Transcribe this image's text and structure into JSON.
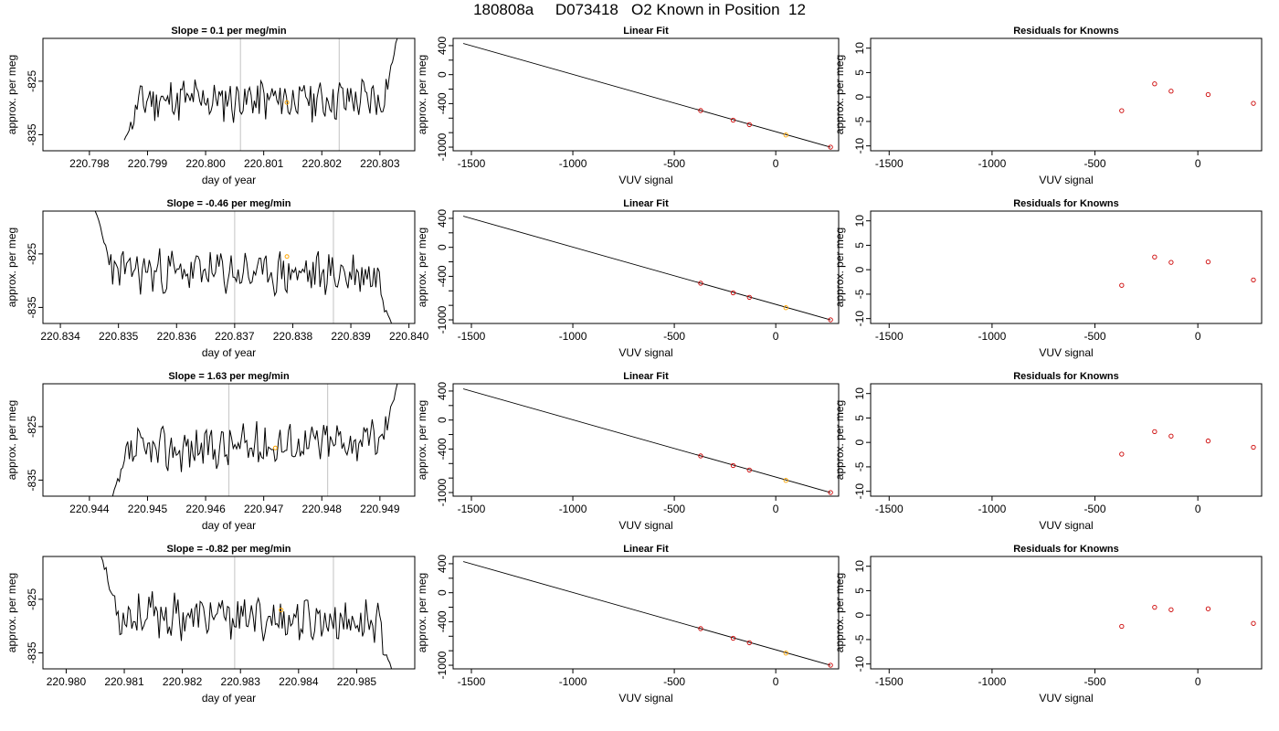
{
  "page": {
    "title": "180808a     D073418   O2 Known in Position  12"
  },
  "colors": {
    "axis": "#000000",
    "trace": "#000000",
    "marker_known": "#cc0000",
    "marker_highlight": "#ffa500",
    "vertical_line": "#cccccc"
  },
  "chart_data": [
    {
      "type": "line",
      "title": "Slope =  0.1  per meg/min",
      "xlabel": "day of year",
      "ylabel": "approx. per meg",
      "xlim": [
        220.7972,
        220.8036
      ],
      "ylim": [
        -838,
        -817
      ],
      "xticks": [
        "220.798",
        "220.799",
        "220.800",
        "220.801",
        "220.802",
        "220.803"
      ],
      "yticks": [
        "-825",
        "-835"
      ],
      "vlines": [
        220.8006,
        220.8023
      ],
      "highlight_point": {
        "x": 220.8014,
        "y": -829
      },
      "trace_x_start": 220.7986,
      "trace_x_end": 220.8033,
      "trace_seed": 11,
      "trace_start_y": -836,
      "trace_end_y": -817,
      "trace_trend": 0.1
    },
    {
      "type": "scatter",
      "title": "Linear Fit",
      "xlabel": "VUV signal",
      "ylabel": "approx. per meg",
      "xlim": [
        -1590,
        310
      ],
      "ylim": [
        -1050,
        500
      ],
      "xticks": [
        "-1500",
        "-1000",
        "-500",
        "0"
      ],
      "yticks": [
        "400",
        "0",
        "-400",
        "-1000"
      ],
      "fit_line": [
        [
          -1540,
          430
        ],
        [
          270,
          -1000
        ]
      ],
      "points": [
        [
          -370,
          -495
        ],
        [
          -210,
          -628
        ],
        [
          -130,
          -690
        ],
        [
          50,
          -832
        ],
        [
          270,
          -1000
        ]
      ],
      "highlight_index": 3
    },
    {
      "type": "scatter",
      "title": "Residuals for Knowns",
      "xlabel": "VUV signal",
      "ylabel": "approx. per meg",
      "xlim": [
        -1590,
        310
      ],
      "ylim": [
        -11,
        12
      ],
      "xticks": [
        "-1500",
        "-1000",
        "-500",
        "0"
      ],
      "yticks": [
        "10",
        "5",
        "0",
        "-5",
        "-10"
      ],
      "points": [
        [
          -370,
          -2.8
        ],
        [
          -210,
          2.7
        ],
        [
          -130,
          1.2
        ],
        [
          50,
          0.5
        ],
        [
          270,
          -1.3
        ]
      ]
    },
    {
      "type": "line",
      "title": "Slope =  -0.46  per meg/min",
      "xlabel": "day of year",
      "ylabel": "approx. per meg",
      "xlim": [
        220.8337,
        220.8401
      ],
      "ylim": [
        -838,
        -817
      ],
      "xticks": [
        "220.834",
        "220.835",
        "220.836",
        "220.837",
        "220.838",
        "220.839",
        "220.840"
      ],
      "yticks": [
        "-825",
        "-835"
      ],
      "vlines": [
        220.837,
        220.8387
      ],
      "highlight_point": {
        "x": 220.8379,
        "y": -825.5
      },
      "trace_x_start": 220.8346,
      "trace_x_end": 220.8397,
      "trace_seed": 23,
      "trace_start_y": -817,
      "trace_end_y": -838,
      "trace_trend": -0.46
    },
    {
      "type": "scatter",
      "title": "Linear Fit",
      "xlabel": "VUV signal",
      "ylabel": "approx. per meg",
      "xlim": [
        -1590,
        310
      ],
      "ylim": [
        -1050,
        500
      ],
      "xticks": [
        "-1500",
        "-1000",
        "-500",
        "0"
      ],
      "yticks": [
        "400",
        "0",
        "-400",
        "-1000"
      ],
      "fit_line": [
        [
          -1540,
          430
        ],
        [
          270,
          -1000
        ]
      ],
      "points": [
        [
          -370,
          -495
        ],
        [
          -210,
          -628
        ],
        [
          -130,
          -690
        ],
        [
          50,
          -832
        ],
        [
          270,
          -1000
        ]
      ],
      "highlight_index": 3
    },
    {
      "type": "scatter",
      "title": "Residuals for Knowns",
      "xlabel": "VUV signal",
      "ylabel": "approx. per meg",
      "xlim": [
        -1590,
        310
      ],
      "ylim": [
        -11,
        12
      ],
      "xticks": [
        "-1500",
        "-1000",
        "-500",
        "0"
      ],
      "yticks": [
        "10",
        "5",
        "0",
        "-5",
        "-10"
      ],
      "points": [
        [
          -370,
          -3.2
        ],
        [
          -210,
          2.6
        ],
        [
          -130,
          1.5
        ],
        [
          50,
          1.6
        ],
        [
          270,
          -2.1
        ]
      ]
    },
    {
      "type": "line",
      "title": "Slope =  1.63  per meg/min",
      "xlabel": "day of year",
      "ylabel": "approx. per meg",
      "xlim": [
        220.9432,
        220.9496
      ],
      "ylim": [
        -838,
        -817
      ],
      "xticks": [
        "220.944",
        "220.945",
        "220.946",
        "220.947",
        "220.948",
        "220.949"
      ],
      "yticks": [
        "-825",
        "-835"
      ],
      "vlines": [
        220.9464,
        220.9481
      ],
      "highlight_point": {
        "x": 220.9472,
        "y": -829
      },
      "trace_x_start": 220.9444,
      "trace_x_end": 220.9493,
      "trace_seed": 37,
      "trace_start_y": -838,
      "trace_end_y": -817,
      "trace_trend": 1.63
    },
    {
      "type": "scatter",
      "title": "Linear Fit",
      "xlabel": "VUV signal",
      "ylabel": "approx. per meg",
      "xlim": [
        -1590,
        310
      ],
      "ylim": [
        -1050,
        500
      ],
      "xticks": [
        "-1500",
        "-1000",
        "-500",
        "0"
      ],
      "yticks": [
        "400",
        "0",
        "-400",
        "-1000"
      ],
      "fit_line": [
        [
          -1540,
          430
        ],
        [
          270,
          -1000
        ]
      ],
      "points": [
        [
          -370,
          -495
        ],
        [
          -210,
          -628
        ],
        [
          -130,
          -690
        ],
        [
          50,
          -832
        ],
        [
          270,
          -1000
        ]
      ],
      "highlight_index": 3
    },
    {
      "type": "scatter",
      "title": "Residuals for Knowns",
      "xlabel": "VUV signal",
      "ylabel": "approx. per meg",
      "xlim": [
        -1590,
        310
      ],
      "ylim": [
        -11,
        12
      ],
      "xticks": [
        "-1500",
        "-1000",
        "-500",
        "0"
      ],
      "yticks": [
        "10",
        "5",
        "0",
        "-5",
        "-10"
      ],
      "points": [
        [
          -370,
          -2.4
        ],
        [
          -210,
          2.2
        ],
        [
          -130,
          1.3
        ],
        [
          50,
          0.3
        ],
        [
          270,
          -1.0
        ]
      ]
    },
    {
      "type": "line",
      "title": "Slope =  -0.82  per meg/min",
      "xlabel": "day of year",
      "ylabel": "approx. per meg",
      "xlim": [
        220.9796,
        220.986
      ],
      "ylim": [
        -838,
        -817
      ],
      "xticks": [
        "220.980",
        "220.981",
        "220.982",
        "220.983",
        "220.984",
        "220.985"
      ],
      "yticks": [
        "-825",
        "-835"
      ],
      "vlines": [
        220.9829,
        220.9846
      ],
      "highlight_point": {
        "x": 220.9837,
        "y": -827
      },
      "trace_x_start": 220.9806,
      "trace_x_end": 220.9856,
      "trace_seed": 53,
      "trace_start_y": -817,
      "trace_end_y": -838,
      "trace_trend": -0.82
    },
    {
      "type": "scatter",
      "title": "Linear Fit",
      "xlabel": "VUV signal",
      "ylabel": "approx. per meg",
      "xlim": [
        -1590,
        310
      ],
      "ylim": [
        -1050,
        500
      ],
      "xticks": [
        "-1500",
        "-1000",
        "-500",
        "0"
      ],
      "yticks": [
        "400",
        "0",
        "-400",
        "-1000"
      ],
      "fit_line": [
        [
          -1540,
          430
        ],
        [
          270,
          -1000
        ]
      ],
      "points": [
        [
          -370,
          -495
        ],
        [
          -210,
          -628
        ],
        [
          -130,
          -690
        ],
        [
          50,
          -832
        ],
        [
          270,
          -1000
        ]
      ],
      "highlight_index": 3
    },
    {
      "type": "scatter",
      "title": "Residuals for Knowns",
      "xlabel": "VUV signal",
      "ylabel": "approx. per meg",
      "xlim": [
        -1590,
        310
      ],
      "ylim": [
        -11,
        12
      ],
      "xticks": [
        "-1500",
        "-1000",
        "-500",
        "0"
      ],
      "yticks": [
        "10",
        "5",
        "0",
        "-5",
        "-10"
      ],
      "points": [
        [
          -370,
          -2.3
        ],
        [
          -210,
          1.6
        ],
        [
          -130,
          1.1
        ],
        [
          50,
          1.3
        ],
        [
          270,
          -1.7
        ]
      ]
    }
  ]
}
